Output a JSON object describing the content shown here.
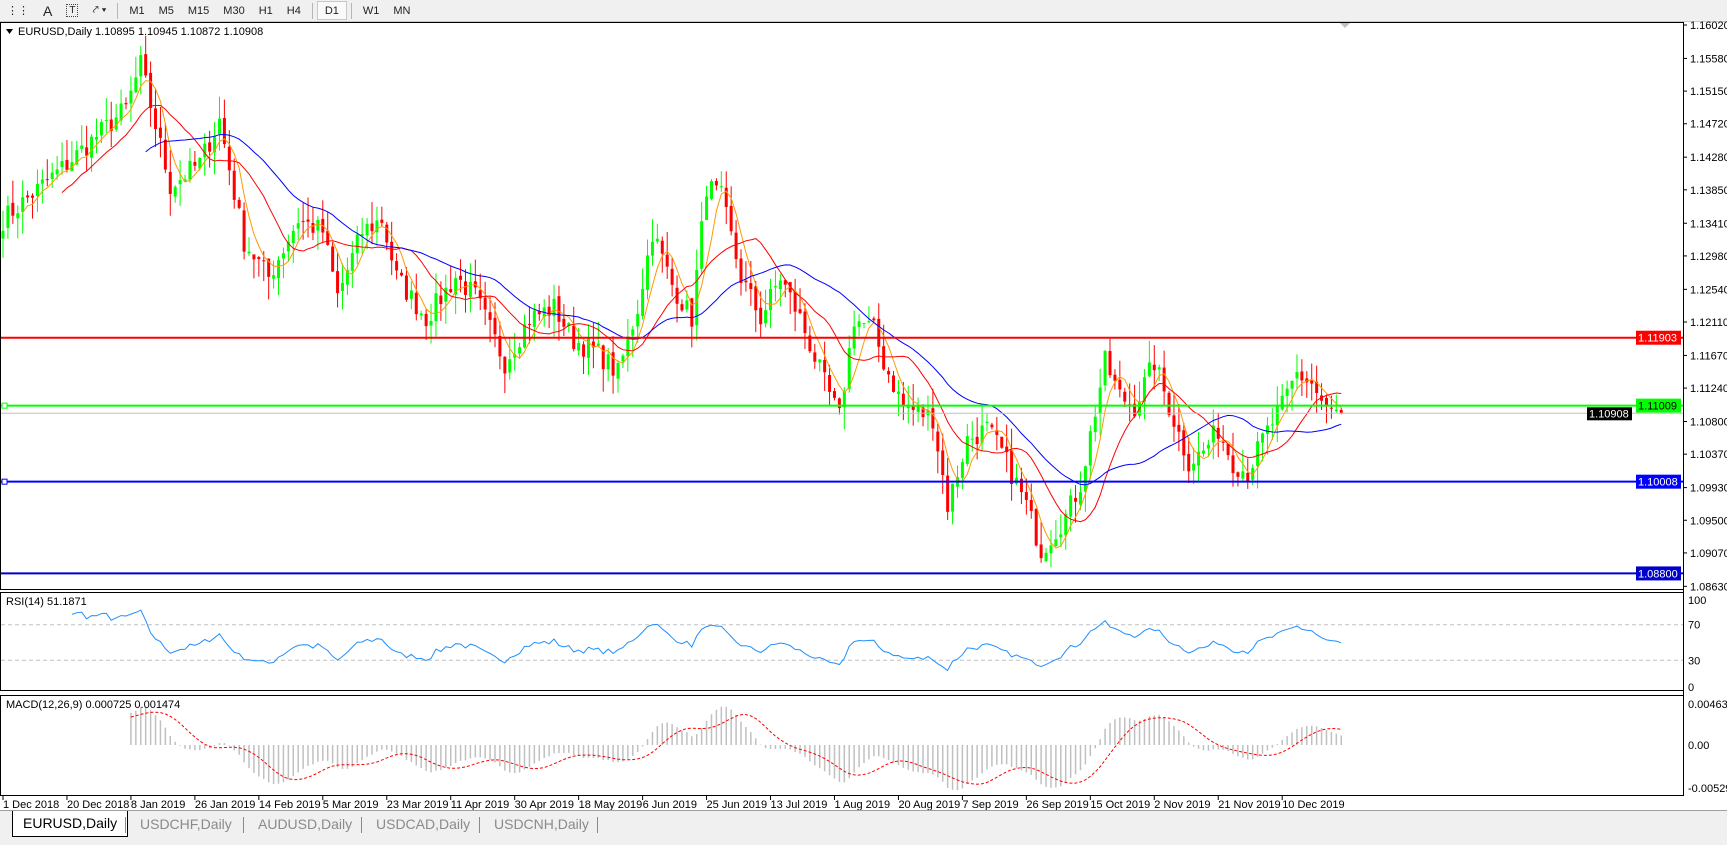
{
  "toolbar": {
    "icons": [
      "grid-icon",
      "text-icon",
      "text-label-icon",
      "shapes-icon"
    ],
    "text_tool": "A",
    "timeframes": [
      "M1",
      "M5",
      "M15",
      "M30",
      "H1",
      "H4",
      "D1",
      "W1",
      "MN"
    ],
    "active_timeframe": "D1"
  },
  "chart": {
    "header": "EURUSD,Daily  1.10895 1.10945 1.10872 1.10908",
    "price_ticks": [
      "1.16020",
      "1.15580",
      "1.15150",
      "1.14720",
      "1.14280",
      "1.13850",
      "1.13410",
      "1.12980",
      "1.12540",
      "1.12110",
      "1.11670",
      "1.11240",
      "1.10800",
      "1.10370",
      "1.09930",
      "1.09500",
      "1.09070",
      "1.08630"
    ],
    "price_range": [
      1.0863,
      1.1602
    ],
    "hlines": [
      {
        "price": 1.11903,
        "label": "1.11903",
        "color": "#ff0000"
      },
      {
        "price": 1.11009,
        "label": "1.11009",
        "color": "#00ff00"
      },
      {
        "price": 1.10008,
        "label": "1.10008",
        "color": "#0000ff"
      },
      {
        "price": 1.088,
        "label": "1.08800",
        "color": "#0000cc"
      }
    ],
    "bid": {
      "price": 1.10908,
      "label": "1.10908"
    },
    "colors": {
      "bull": "#00ff00",
      "bear": "#ff0000",
      "ma_fast": "#ff9900",
      "ma_mid": "#ff0000",
      "ma_slow": "#0000ff"
    },
    "close_anchors": [
      [
        0,
        1.1346
      ],
      [
        13,
        1.1419
      ],
      [
        25,
        1.1492
      ],
      [
        28,
        1.155
      ],
      [
        34,
        1.139
      ],
      [
        40,
        1.142
      ],
      [
        44,
        1.1477
      ],
      [
        49,
        1.1317
      ],
      [
        54,
        1.127
      ],
      [
        60,
        1.1346
      ],
      [
        65,
        1.133
      ],
      [
        68,
        1.1245
      ],
      [
        73,
        1.133
      ],
      [
        77,
        1.1346
      ],
      [
        80,
        1.127
      ],
      [
        86,
        1.1216
      ],
      [
        92,
        1.127
      ],
      [
        96,
        1.1245
      ],
      [
        102,
        1.1158
      ],
      [
        107,
        1.1216
      ],
      [
        112,
        1.123
      ],
      [
        116,
        1.1187
      ],
      [
        121,
        1.117
      ],
      [
        125,
        1.1143
      ],
      [
        129,
        1.123
      ],
      [
        132,
        1.133
      ],
      [
        136,
        1.126
      ],
      [
        140,
        1.1216
      ],
      [
        143,
        1.139
      ],
      [
        146,
        1.1375
      ],
      [
        150,
        1.127
      ],
      [
        154,
        1.1216
      ],
      [
        158,
        1.127
      ],
      [
        162,
        1.1216
      ],
      [
        167,
        1.113
      ],
      [
        170,
        1.1085
      ],
      [
        173,
        1.1216
      ],
      [
        177,
        1.12
      ],
      [
        179,
        1.1158
      ],
      [
        183,
        1.11
      ],
      [
        189,
        1.1085
      ],
      [
        192,
        1.097
      ],
      [
        196,
        1.1056
      ],
      [
        200,
        1.107
      ],
      [
        203,
        1.104
      ],
      [
        208,
        1.097
      ],
      [
        211,
        1.0911
      ],
      [
        216,
        1.0955
      ],
      [
        219,
        1.0998
      ],
      [
        224,
        1.1158
      ],
      [
        227,
        1.1114
      ],
      [
        230,
        1.11
      ],
      [
        234,
        1.1158
      ],
      [
        237,
        1.11
      ],
      [
        241,
        1.1027
      ],
      [
        244,
        1.104
      ],
      [
        247,
        1.107
      ],
      [
        250,
        1.1027
      ],
      [
        253,
        1.1012
      ],
      [
        256,
        1.1056
      ],
      [
        260,
        1.11
      ],
      [
        263,
        1.1143
      ],
      [
        266,
        1.113
      ],
      [
        269,
        1.1093
      ],
      [
        272,
        1.1091
      ]
    ]
  },
  "rsi": {
    "header": "RSI(14) 51.1871",
    "ticks": [
      "100",
      "70",
      "30",
      "0"
    ],
    "levels": [
      70,
      30
    ],
    "color": "#1e90ff"
  },
  "macd": {
    "header": "MACD(12,26,9) 0.000725 0.001474",
    "ticks": [
      "0.00463",
      "0.00",
      "-0.00529"
    ],
    "range": [
      -0.00529,
      0.00463
    ],
    "hist_color": "#c0c0c0",
    "signal_color": "#ff0000"
  },
  "dates": [
    "1 Dec 2018",
    "20 Dec 2018",
    "8 Jan 2019",
    "26 Jan 2019",
    "14 Feb 2019",
    "5 Mar 2019",
    "23 Mar 2019",
    "11 Apr 2019",
    "30 Apr 2019",
    "18 May 2019",
    "6 Jun 2019",
    "25 Jun 2019",
    "13 Jul 2019",
    "1 Aug 2019",
    "20 Aug 2019",
    "7 Sep 2019",
    "26 Sep 2019",
    "15 Oct 2019",
    "2 Nov 2019",
    "21 Nov 2019",
    "10 Dec 2019"
  ],
  "tabs": [
    {
      "label": "EURUSD,Daily",
      "active": true
    },
    {
      "label": "USDCHF,Daily",
      "active": false
    },
    {
      "label": "AUDUSD,Daily",
      "active": false
    },
    {
      "label": "USDCAD,Daily",
      "active": false
    },
    {
      "label": "USDCNH,Daily",
      "active": false
    }
  ]
}
